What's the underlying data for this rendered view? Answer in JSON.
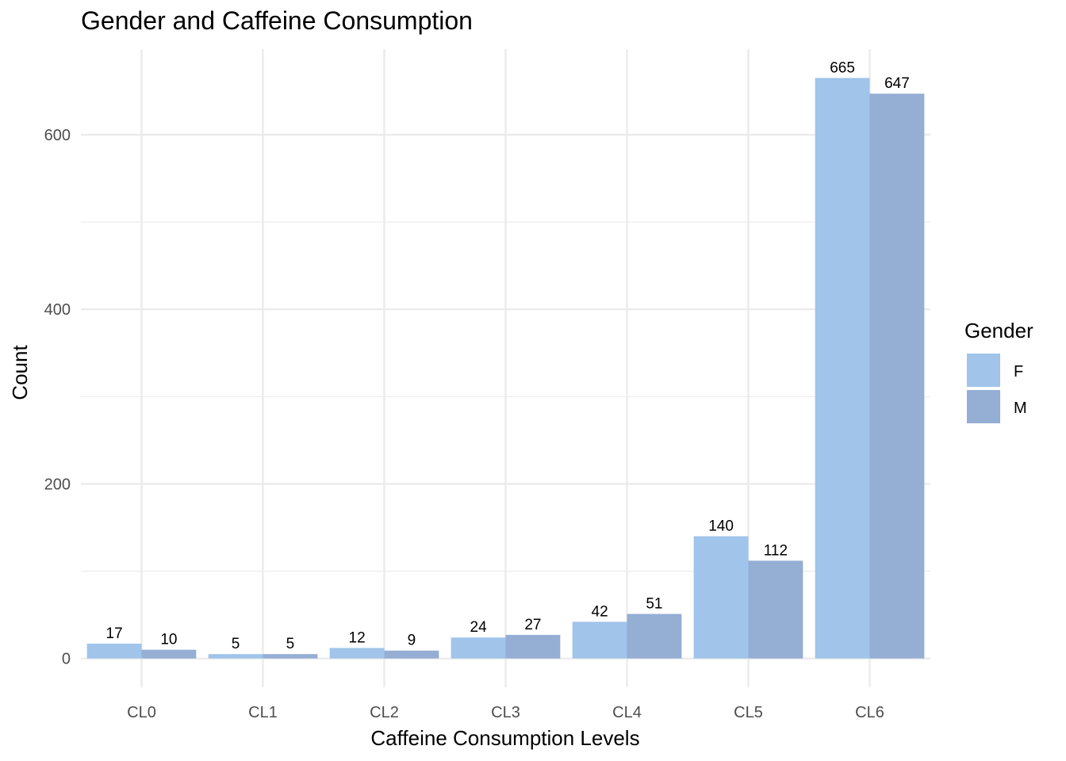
{
  "chart_data": {
    "type": "bar",
    "title": "Gender and Caffeine Consumption",
    "xlabel": "Caffeine Consumption Levels",
    "ylabel": "Count",
    "categories": [
      "CL0",
      "CL1",
      "CL2",
      "CL3",
      "CL4",
      "CL5",
      "CL6"
    ],
    "series": [
      {
        "name": "F",
        "values": [
          17,
          5,
          12,
          24,
          42,
          140,
          665
        ],
        "color": "#a0c4ea"
      },
      {
        "name": "M",
        "values": [
          10,
          5,
          9,
          27,
          51,
          112,
          647
        ],
        "color": "#94aed4"
      }
    ],
    "y_ticks": [
      0,
      200,
      400,
      600
    ],
    "ylim": [
      -33,
      698
    ],
    "grid": true,
    "legend": {
      "title": "Gender",
      "placement": "right"
    },
    "colors": {
      "gridline": "#ebebeb",
      "tick_text": "#4d4d4d"
    }
  }
}
